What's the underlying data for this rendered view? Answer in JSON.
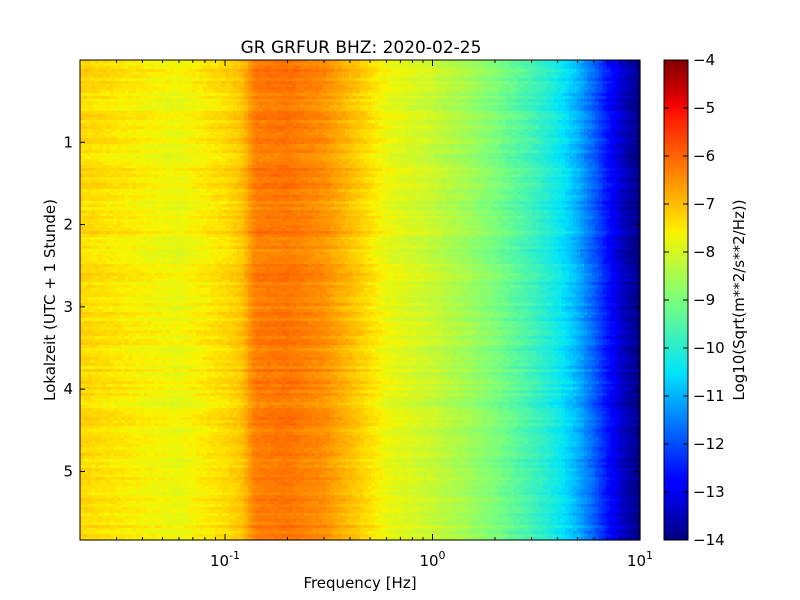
{
  "chart_data": {
    "type": "heatmap",
    "title": "GR GRFUR BHZ: 2020-02-25",
    "xlabel": "Frequency [Hz]",
    "ylabel": "Lokalzeit (UTC + 1 Stunde)",
    "x_scale": "log",
    "xlim": [
      0.02,
      10
    ],
    "x_ticks": [
      {
        "value": 0.1,
        "base": "10",
        "exp": "-1"
      },
      {
        "value": 1,
        "base": "10",
        "exp": "0"
      },
      {
        "value": 10,
        "base": "10",
        "exp": "1"
      }
    ],
    "ylim": [
      0,
      5.833
    ],
    "y_inverted": true,
    "y_ticks": [
      1,
      2,
      3,
      4,
      5
    ],
    "colormap": "jet",
    "colorbar": {
      "label": "Log10(Sqrt(m**2/s**2/Hz))",
      "range": [
        -14,
        -4
      ],
      "ticks": [
        -4,
        -5,
        -6,
        -7,
        -8,
        -9,
        -10,
        -11,
        -12,
        -13,
        -14
      ]
    },
    "spectral_profile": {
      "frequency_hz": [
        0.02,
        0.04,
        0.06,
        0.1,
        0.12,
        0.14,
        0.2,
        0.3,
        0.45,
        0.6,
        1.0,
        1.5,
        2.0,
        3.0,
        4.0,
        5.0,
        6.0,
        7.0,
        8.0,
        10.0
      ],
      "value": [
        -7.3,
        -7.6,
        -7.75,
        -7.35,
        -7.1,
        -6.3,
        -6.2,
        -6.5,
        -7.2,
        -7.75,
        -8.15,
        -8.6,
        -9.0,
        -9.7,
        -10.3,
        -11.0,
        -11.8,
        -12.6,
        -13.3,
        -14.0
      ]
    }
  }
}
